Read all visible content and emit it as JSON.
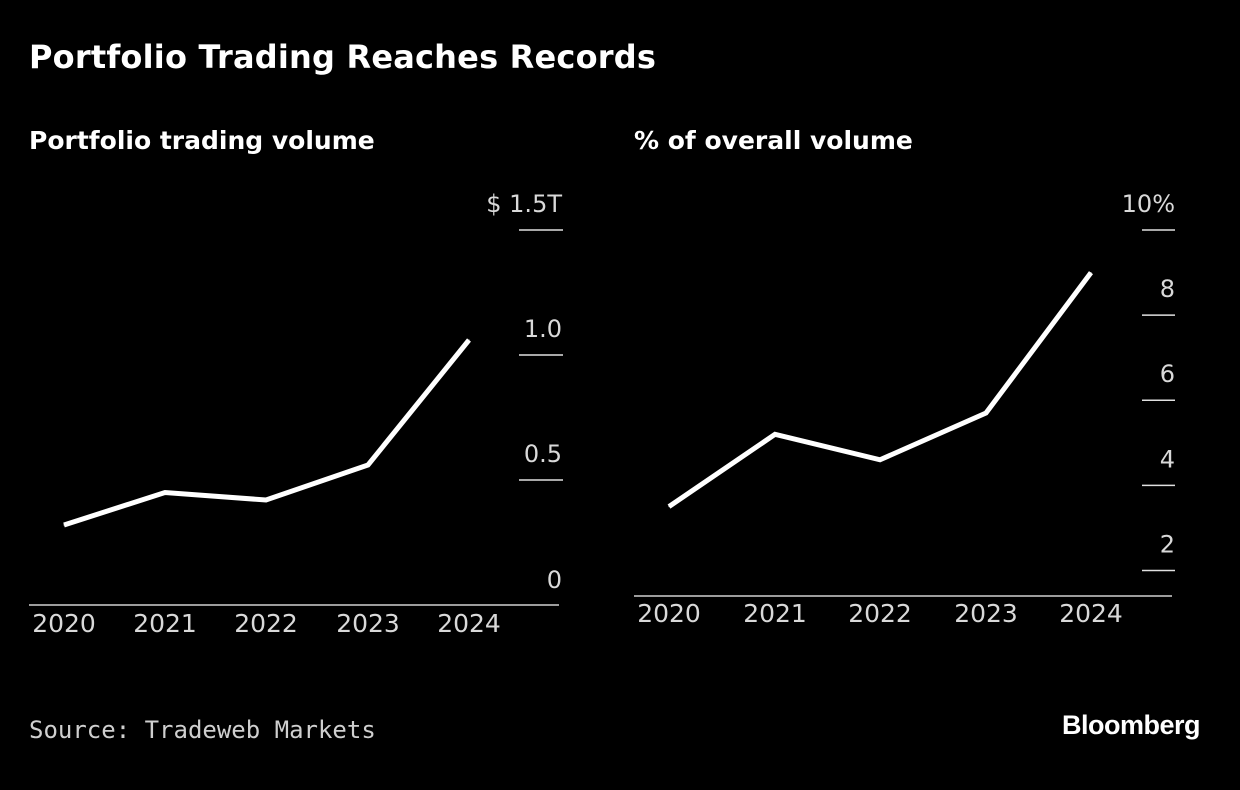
{
  "title": "Portfolio Trading Reaches Records",
  "source": "Source: Tradeweb Markets",
  "logo": "Bloomberg",
  "colors": {
    "background": "#000000",
    "line": "#ffffff",
    "text": "#d9d9d9"
  },
  "chart_data": [
    {
      "type": "line",
      "title": "Portfolio trading volume",
      "x": [
        "2020",
        "2021",
        "2022",
        "2023",
        "2024"
      ],
      "series": [
        {
          "values": [
            0.32,
            0.45,
            0.42,
            0.56,
            1.06
          ]
        }
      ],
      "ylim": [
        0,
        1.5
      ],
      "yticks": [
        0,
        0.5,
        1.0,
        1.5
      ],
      "ytick_labels": [
        "0",
        "0.5",
        "1.0",
        "$ 1.5T"
      ],
      "y_axis_side": "right",
      "grid": false
    },
    {
      "type": "line",
      "title": "% of overall volume",
      "x": [
        "2020",
        "2021",
        "2022",
        "2023",
        "2024"
      ],
      "series": [
        {
          "values": [
            3.5,
            5.2,
            4.6,
            5.7,
            9.0
          ]
        }
      ],
      "ylim": [
        1.4,
        10
      ],
      "yticks": [
        2,
        4,
        6,
        8,
        10
      ],
      "ytick_labels": [
        "2",
        "4",
        "6",
        "8",
        "10%"
      ],
      "y_axis_side": "right",
      "grid": false
    }
  ]
}
